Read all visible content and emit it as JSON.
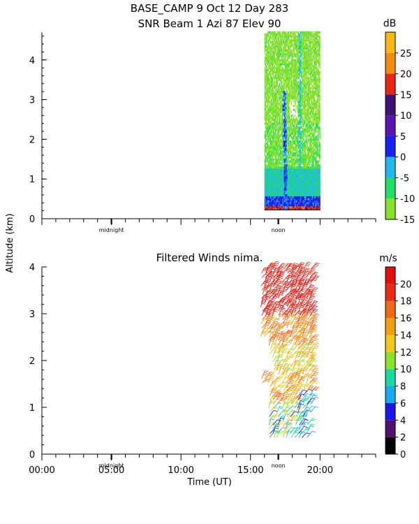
{
  "header": {
    "title_line1": "BASE_CAMP    9 Oct 12 Day 283",
    "title_line2": "SNR Beam 1 Azi  87 Elev 90"
  },
  "shared": {
    "ylabel": "Altitude (km)",
    "xlabel": "Time (UT)",
    "midnight_label": "midnight",
    "noon_label": "noon",
    "midnight_hour": 5,
    "noon_hour": 17,
    "xlim": [
      0,
      24
    ],
    "x_tick_labels": [
      "00:00",
      "05:00",
      "10:00",
      "15:00",
      "20:00"
    ],
    "x_tick_values": [
      0,
      5,
      10,
      15,
      20
    ]
  },
  "chart_data": [
    {
      "type": "heatmap",
      "title": "SNR Beam 1 Azi  87 Elev 90",
      "ylabel": "Altitude (km)",
      "ylim": [
        0,
        4.7
      ],
      "y_ticks": [
        0,
        1,
        2,
        3,
        4
      ],
      "y_tick_labels": [
        "0",
        "1",
        "2",
        "3",
        "4"
      ],
      "x_coverage_hours": [
        16.0,
        20.0
      ],
      "colorbar": {
        "unit": "dB",
        "ticks": [
          "25",
          "20",
          "15",
          "10",
          "5",
          "0",
          "-5",
          "-10",
          "-15"
        ],
        "bins": [
          {
            "from": -15,
            "to": -10,
            "color": "#88e02e"
          },
          {
            "from": -10,
            "to": -5,
            "color": "#22dd66"
          },
          {
            "from": -5,
            "to": 0,
            "color": "#22b8ee"
          },
          {
            "from": 0,
            "to": 5,
            "color": "#1822ee"
          },
          {
            "from": 5,
            "to": 10,
            "color": "#5a14b0"
          },
          {
            "from": 10,
            "to": 15,
            "color": "#3a1470"
          },
          {
            "from": 15,
            "to": 20,
            "color": "#e82418"
          },
          {
            "from": 20,
            "to": 25,
            "color": "#f08a10"
          },
          {
            "from": 25,
            "to": 30,
            "color": "#f8b818"
          }
        ]
      }
    },
    {
      "type": "scatter",
      "title": "Filtered Winds nima.",
      "ylabel": "Altitude (km)",
      "xlabel": "Time (UT)",
      "ylim": [
        0,
        4
      ],
      "y_ticks": [
        0,
        1,
        2,
        3,
        4
      ],
      "y_tick_labels": [
        "0",
        "1",
        "2",
        "3",
        "4"
      ],
      "x_coverage_hours": [
        15.7,
        19.6
      ],
      "colorbar": {
        "unit": "m/s",
        "ticks": [
          "20",
          "18",
          "16",
          "14",
          "12",
          "10",
          "8",
          "6",
          "4",
          "2",
          "0"
        ],
        "bins": [
          {
            "from": 0,
            "to": 2,
            "color": "#000000"
          },
          {
            "from": 2,
            "to": 4,
            "color": "#55106e"
          },
          {
            "from": 4,
            "to": 6,
            "color": "#1a18e8"
          },
          {
            "from": 6,
            "to": 8,
            "color": "#1aa8ee"
          },
          {
            "from": 8,
            "to": 10,
            "color": "#1ad8a0"
          },
          {
            "from": 10,
            "to": 12,
            "color": "#8ae02a"
          },
          {
            "from": 12,
            "to": 14,
            "color": "#f0c818"
          },
          {
            "from": 14,
            "to": 16,
            "color": "#f0a014"
          },
          {
            "from": 16,
            "to": 18,
            "color": "#f06818"
          },
          {
            "from": 18,
            "to": 20,
            "color": "#e82a18"
          },
          {
            "from": 20,
            "to": 22,
            "color": "#e01010"
          }
        ]
      }
    }
  ]
}
